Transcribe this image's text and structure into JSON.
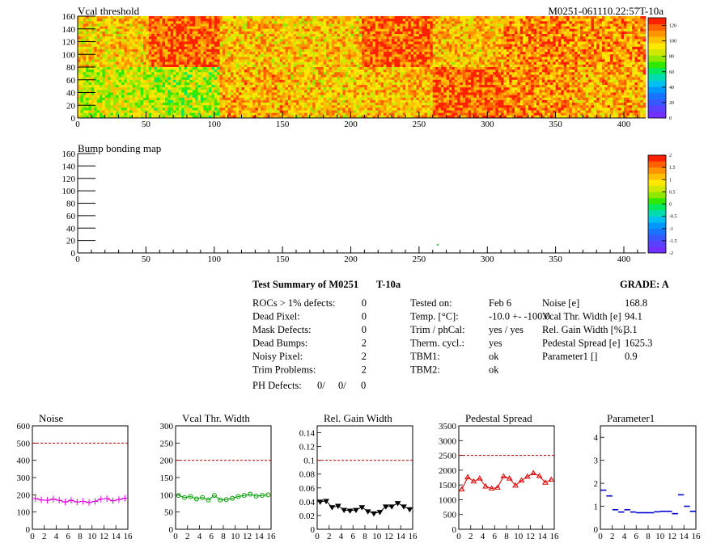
{
  "header": {
    "map1_title": "Vcal threshold",
    "module_tag": "M0251-061110.22:57T-10a",
    "map2_title": "Bump bonding map"
  },
  "map_axes": {
    "x_ticks": [
      "0",
      "50",
      "100",
      "150",
      "200",
      "250",
      "300",
      "350",
      "400"
    ],
    "y_ticks": [
      "0",
      "20",
      "40",
      "60",
      "80",
      "100",
      "120",
      "140",
      "160"
    ],
    "xlim": [
      0,
      416
    ],
    "ylim": [
      0,
      160
    ]
  },
  "palette": [
    "#7030ff",
    "#5a40ff",
    "#3858ff",
    "#1874ff",
    "#0098ff",
    "#00c0f0",
    "#00dcb0",
    "#00e860",
    "#30e800",
    "#90e800",
    "#d0e800",
    "#ffe800",
    "#ffc000",
    "#ff9400",
    "#ff6000",
    "#ff2000"
  ],
  "zscale1": {
    "labels": [
      "0",
      "20",
      "40",
      "60",
      "80",
      "100",
      "120"
    ],
    "range": [
      0,
      130
    ]
  },
  "zscale2": {
    "labels": [
      "-2",
      "-1.5",
      "-1",
      "-0.5",
      "0",
      "0.5",
      "1",
      "1.5",
      "2"
    ],
    "range": [
      -2,
      2
    ]
  },
  "summary": {
    "title": "Test Summary of M0251",
    "temp_tag": "T-10a",
    "grade": "GRADE:  A",
    "rows": [
      {
        "label": "ROCs > 1% defects:",
        "value": "0"
      },
      {
        "label": "Dead Pixel:",
        "value": "0"
      },
      {
        "label": "Mask Defects:",
        "value": "0"
      },
      {
        "label": "Dead Bumps:",
        "value": "2"
      },
      {
        "label": "Noisy Pixel:",
        "value": "2"
      },
      {
        "label": "Trim Problems:",
        "value": "2"
      }
    ],
    "ph_label": "PH Defects:",
    "ph_values": [
      "0/",
      "0/",
      "0"
    ],
    "ph_colors": [
      "#000000",
      "#ff0000",
      "#0000ff"
    ],
    "conditions": [
      {
        "label": "Tested on:",
        "value": "Feb 6"
      },
      {
        "label": "Temp. [°C]:",
        "value": "-10.0 +- -100.0"
      },
      {
        "label": "Trim / phCal:",
        "value": "yes / yes"
      },
      {
        "label": "Therm. cycl.:",
        "value": "yes"
      },
      {
        "label": "TBM1:",
        "value": "ok"
      },
      {
        "label": "TBM2:",
        "value": "ok"
      }
    ],
    "measurements": [
      {
        "label": "Noise [e]",
        "value": "168.8"
      },
      {
        "label": "Vcal Thr. Width [e]",
        "value": "94.1"
      },
      {
        "label": "Rel. Gain Width [%]",
        "value": "3.1"
      },
      {
        "label": "Pedestal Spread [e]",
        "value": "1625.3"
      },
      {
        "label": "Parameter1 []",
        "value": "0.9"
      }
    ]
  },
  "chart_data": [
    {
      "type": "heatmap",
      "title": "Vcal threshold",
      "x_range": [
        0,
        416
      ],
      "y_range": [
        0,
        160
      ],
      "roc_blocks": {
        "top_row_means": [
          98,
          118,
          100,
          99,
          118,
          101,
          112,
          108
        ],
        "bottom_row_means": [
          86,
          82,
          104,
          99,
          101,
          118,
          110,
          103
        ]
      },
      "z_range": [
        0,
        130
      ]
    },
    {
      "type": "heatmap",
      "title": "Bump bonding map",
      "x_range": [
        0,
        416
      ],
      "y_range": [
        0,
        160
      ],
      "points": [
        {
          "x": 263,
          "y": 13,
          "z": 0
        }
      ],
      "z_range": [
        -2,
        2
      ]
    },
    {
      "type": "line",
      "title": "Noise",
      "color": "#e000e0",
      "marker": "cross",
      "x": [
        0,
        1,
        2,
        3,
        4,
        5,
        6,
        7,
        8,
        9,
        10,
        11,
        12,
        13,
        14,
        15
      ],
      "values": [
        178,
        170,
        168,
        175,
        168,
        158,
        168,
        158,
        162,
        155,
        162,
        175,
        178,
        165,
        172,
        180
      ],
      "ylim": [
        0,
        600
      ],
      "yticks": [
        0,
        100,
        200,
        300,
        400,
        500,
        600
      ],
      "limit": 500,
      "xticks": [
        0,
        2,
        4,
        6,
        8,
        10,
        12,
        14,
        16
      ]
    },
    {
      "type": "line",
      "title": "Vcal Thr. Width",
      "color": "#00a000",
      "marker": "circle",
      "x": [
        0,
        1,
        2,
        3,
        4,
        5,
        6,
        7,
        8,
        9,
        10,
        11,
        12,
        13,
        14,
        15
      ],
      "values": [
        98,
        92,
        95,
        88,
        92,
        85,
        98,
        85,
        86,
        90,
        95,
        98,
        102,
        96,
        98,
        100
      ],
      "ylim": [
        0,
        300
      ],
      "yticks": [
        0,
        50,
        100,
        150,
        200,
        250,
        300
      ],
      "limit": 200,
      "xticks": [
        0,
        2,
        4,
        6,
        8,
        10,
        12,
        14,
        16
      ]
    },
    {
      "type": "line",
      "title": "Rel. Gain Width",
      "color": "#000000",
      "marker": "triangle",
      "x": [
        0,
        1,
        2,
        3,
        4,
        5,
        6,
        7,
        8,
        9,
        10,
        11,
        12,
        13,
        14,
        15
      ],
      "values": [
        0.04,
        0.041,
        0.032,
        0.034,
        0.028,
        0.027,
        0.028,
        0.032,
        0.026,
        0.023,
        0.025,
        0.033,
        0.033,
        0.038,
        0.033,
        0.029
      ],
      "ylim": [
        0,
        0.15
      ],
      "yticks": [
        0,
        0.02,
        0.04,
        0.06,
        0.08,
        0.1,
        0.12,
        0.14
      ],
      "limit": 0.1,
      "xticks": [
        0,
        2,
        4,
        6,
        8,
        10,
        12,
        14,
        16
      ]
    },
    {
      "type": "line",
      "title": "Pedestal Spread",
      "color": "#e00000",
      "marker": "triangle-open",
      "x": [
        0,
        1,
        2,
        3,
        4,
        5,
        6,
        7,
        8,
        9,
        10,
        11,
        12,
        13,
        14,
        15
      ],
      "values": [
        1350,
        1760,
        1620,
        1720,
        1450,
        1380,
        1410,
        1790,
        1720,
        1480,
        1650,
        1780,
        1900,
        1800,
        1580,
        1680
      ],
      "ylim": [
        0,
        3500
      ],
      "yticks": [
        0,
        500,
        1000,
        1500,
        2000,
        2500,
        3000,
        3500
      ],
      "limit": 2500,
      "xticks": [
        0,
        2,
        4,
        6,
        8,
        10,
        12,
        14,
        16
      ]
    },
    {
      "type": "scatter",
      "title": "Parameter1",
      "color": "#0000d0",
      "marker": "hbar",
      "x": [
        0,
        1,
        2,
        3,
        4,
        5,
        6,
        7,
        8,
        9,
        10,
        11,
        12,
        13,
        14,
        15
      ],
      "values": [
        1.7,
        1.45,
        0.85,
        0.75,
        0.85,
        0.75,
        0.72,
        0.72,
        0.72,
        0.76,
        0.78,
        0.78,
        0.68,
        1.5,
        1.0,
        0.78
      ],
      "ylim": [
        0,
        4.5
      ],
      "yticks": [
        0,
        1,
        2,
        3,
        4
      ],
      "xticks": [
        0,
        2,
        4,
        6,
        8,
        10,
        12,
        14,
        16
      ]
    }
  ]
}
